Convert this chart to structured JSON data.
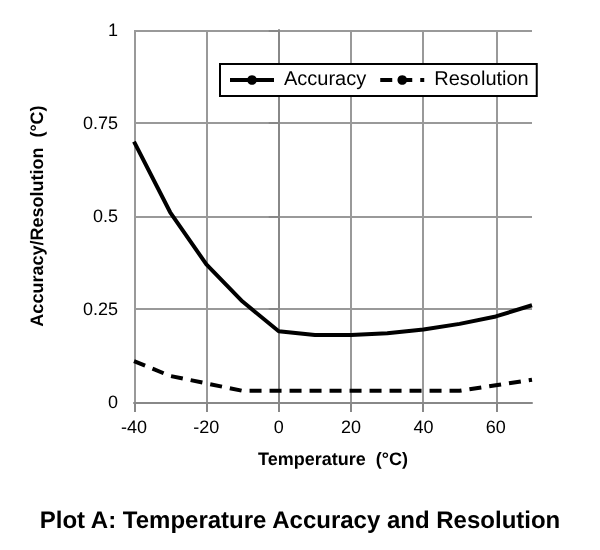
{
  "chart_data": {
    "type": "line",
    "title": "Plot A: Temperature Accuracy and Resolution",
    "xlabel": "Temperature  (°C)",
    "ylabel": "Accuracy/Resolution  (°C)",
    "x": [
      -40,
      -30,
      -20,
      -10,
      0,
      10,
      20,
      30,
      40,
      50,
      60,
      70
    ],
    "series": [
      {
        "name": "Accuracy",
        "color": "#000000",
        "line_style": "solid",
        "values": [
          0.7,
          0.51,
          0.37,
          0.27,
          0.19,
          0.18,
          0.18,
          0.185,
          0.195,
          0.21,
          0.23,
          0.26
        ]
      },
      {
        "name": "Resolution",
        "color": "#000000",
        "line_style": "dashed",
        "values": [
          0.11,
          0.07,
          0.05,
          0.03,
          0.03,
          0.03,
          0.03,
          0.03,
          0.03,
          0.03,
          0.045,
          0.06
        ]
      }
    ],
    "xlim": [
      -40,
      70
    ],
    "xticks": [
      -40,
      -20,
      0,
      20,
      40,
      60
    ],
    "ylim": [
      0,
      1
    ],
    "yticks": [
      0,
      0.25,
      0.5,
      0.75,
      1
    ],
    "grid": true,
    "legend": "top",
    "marker": "none"
  }
}
